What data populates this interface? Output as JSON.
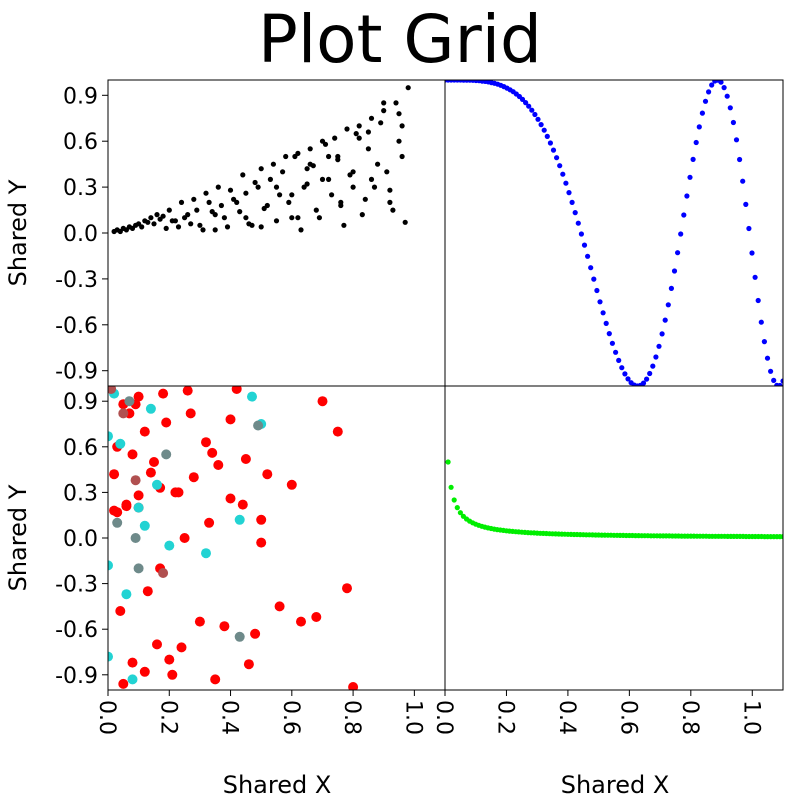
{
  "chart_data": {
    "type": "scatter",
    "title": "Plot Grid",
    "shared_xlabel": "Shared X",
    "shared_ylabel": "Shared Y",
    "xlim": [
      0.0,
      1.1
    ],
    "ylim": [
      -1.0,
      1.0
    ],
    "x_ticks": [
      "0.0",
      "0.2",
      "0.4",
      "0.6",
      "0.8",
      "1.0"
    ],
    "x_tick_values": [
      0.0,
      0.2,
      0.4,
      0.6,
      0.8,
      1.0
    ],
    "y_ticks": [
      "0.9",
      "0.6",
      "0.3",
      "0.0",
      "-0.3",
      "-0.6",
      "-0.9"
    ],
    "y_tick_values": [
      0.9,
      0.6,
      0.3,
      0.0,
      -0.3,
      -0.6,
      -0.9
    ],
    "grid": false,
    "panels": [
      {
        "position": "top-left",
        "series": [
          {
            "color": "#000000",
            "x": [
              0.02,
              0.03,
              0.04,
              0.05,
              0.06,
              0.07,
              0.08,
              0.09,
              0.1,
              0.11,
              0.12,
              0.13,
              0.14,
              0.15,
              0.16,
              0.17,
              0.18,
              0.2,
              0.22,
              0.24,
              0.26,
              0.28,
              0.3,
              0.32,
              0.34,
              0.36,
              0.38,
              0.4,
              0.42,
              0.44,
              0.46,
              0.48,
              0.5,
              0.52,
              0.54,
              0.56,
              0.58,
              0.6,
              0.62,
              0.64,
              0.66,
              0.68,
              0.7,
              0.72,
              0.74,
              0.76,
              0.78,
              0.8,
              0.82,
              0.84,
              0.86,
              0.88,
              0.9,
              0.92,
              0.94,
              0.96,
              0.98,
              0.97,
              0.95,
              0.93,
              0.91,
              0.89,
              0.87,
              0.85,
              0.83,
              0.81,
              0.79,
              0.77,
              0.75,
              0.73,
              0.71,
              0.69,
              0.67,
              0.65,
              0.63,
              0.61,
              0.59,
              0.57,
              0.55,
              0.53,
              0.51,
              0.49,
              0.47,
              0.45,
              0.43,
              0.41,
              0.39,
              0.37,
              0.35,
              0.33,
              0.31,
              0.29,
              0.27,
              0.25,
              0.23,
              0.21,
              0.19,
              0.35,
              0.45,
              0.55,
              0.65,
              0.75,
              0.85,
              0.95,
              0.5,
              0.6,
              0.7,
              0.8,
              0.9,
              0.62,
              0.72,
              0.82,
              0.92,
              0.66,
              0.76,
              0.86,
              0.96
            ],
            "y": [
              0.01,
              0.02,
              0.01,
              0.03,
              0.02,
              0.04,
              0.03,
              0.05,
              0.06,
              0.04,
              0.08,
              0.07,
              0.1,
              0.06,
              0.12,
              0.09,
              0.11,
              0.15,
              0.08,
              0.2,
              0.12,
              0.22,
              0.05,
              0.26,
              0.14,
              0.3,
              0.1,
              0.28,
              0.2,
              0.38,
              0.06,
              0.33,
              0.42,
              0.18,
              0.45,
              0.25,
              0.5,
              0.1,
              0.52,
              0.3,
              0.55,
              0.15,
              0.6,
              0.35,
              0.62,
              0.2,
              0.68,
              0.4,
              0.7,
              0.22,
              0.75,
              0.45,
              0.8,
              0.28,
              0.85,
              0.5,
              0.95,
              0.07,
              0.6,
              0.15,
              0.4,
              0.72,
              0.3,
              0.55,
              0.12,
              0.65,
              0.38,
              0.05,
              0.48,
              0.25,
              0.58,
              0.1,
              0.44,
              0.32,
              0.02,
              0.5,
              0.2,
              0.4,
              0.08,
              0.35,
              0.16,
              0.3,
              0.05,
              0.26,
              0.14,
              0.22,
              0.04,
              0.18,
              0.12,
              0.2,
              0.02,
              0.15,
              0.06,
              0.1,
              0.04,
              0.08,
              0.03,
              0.02,
              0.1,
              0.3,
              0.42,
              0.5,
              0.66,
              0.78,
              0.04,
              0.25,
              0.35,
              0.3,
              0.85,
              0.1,
              0.5,
              0.62,
              0.2,
              0.45,
              0.18,
              0.35,
              0.7
            ]
          }
        ]
      },
      {
        "position": "top-right",
        "series": [
          {
            "color": "#0000ff",
            "function": "cos(8*x^2)",
            "x_start": 0.0,
            "x_end": 1.1,
            "n_points": 110
          }
        ]
      },
      {
        "position": "bottom-left",
        "series": [
          {
            "color": "#ff0000",
            "x": [
              0.05,
              0.08,
              0.03,
              0.12,
              0.02,
              0.22,
              0.28,
              0.36,
              0.44,
              0.52,
              0.6,
              0.7,
              0.75,
              0.5,
              0.4,
              0.33,
              0.25,
              0.17,
              0.1,
              0.06,
              0.14,
              0.2,
              0.3,
              0.46,
              0.56,
              0.63,
              0.68,
              0.78,
              0.8,
              0.38,
              0.24,
              0.16,
              0.08,
              0.04,
              0.13,
              0.21,
              0.35,
              0.48,
              0.1,
              0.02,
              0.18,
              0.27,
              0.42,
              0.5,
              0.09,
              0.06,
              0.15,
              0.32,
              0.12,
              0.26,
              0.4,
              0.05,
              0.19,
              0.03,
              0.07,
              0.1,
              0.23,
              0.17,
              0.34,
              0.45
            ],
            "y": [
              0.88,
              0.55,
              0.6,
              0.7,
              0.18,
              0.3,
              0.4,
              0.48,
              0.22,
              0.42,
              0.35,
              0.9,
              0.7,
              0.12,
              0.26,
              0.1,
              0.0,
              0.33,
              0.28,
              0.21,
              0.43,
              -0.8,
              -0.55,
              -0.83,
              -0.45,
              -0.55,
              -0.52,
              -0.33,
              -0.98,
              -0.58,
              -0.72,
              -0.7,
              -0.82,
              -0.48,
              -0.35,
              -0.9,
              -0.93,
              -0.63,
              0.93,
              0.42,
              0.95,
              0.82,
              0.98,
              -0.03,
              0.88,
              0.22,
              0.5,
              0.63,
              -0.88,
              0.97,
              0.78,
              -0.96,
              0.76,
              0.17,
              0.82,
              0.2,
              0.3,
              -0.2,
              0.56,
              0.52
            ]
          },
          {
            "color": "#22d3d3",
            "x": [
              0.0,
              0.04,
              0.12,
              0.2,
              0.32,
              0.43,
              0.47,
              0.5,
              0.0,
              0.08,
              0.0,
              0.02,
              0.06,
              0.1,
              0.14,
              0.16
            ],
            "y": [
              0.67,
              0.62,
              0.08,
              -0.05,
              -0.1,
              0.12,
              0.93,
              0.75,
              -0.18,
              -0.93,
              -0.78,
              0.95,
              -0.37,
              0.2,
              0.85,
              0.35
            ]
          },
          {
            "color": "#6e8a8a",
            "x": [
              0.03,
              0.09,
              0.1,
              0.19,
              0.07,
              0.43,
              0.49
            ],
            "y": [
              0.1,
              0.0,
              -0.2,
              0.55,
              0.9,
              -0.65,
              0.74
            ]
          },
          {
            "color": "#b05050",
            "x": [
              0.05,
              0.09,
              0.18,
              0.01
            ],
            "y": [
              0.82,
              0.38,
              -0.23,
              0.98
            ]
          }
        ]
      },
      {
        "position": "bottom-right",
        "series": [
          {
            "color": "#00ee00",
            "function": "0.01/(x+0.01)",
            "x_start": 0.01,
            "x_end": 1.1,
            "n_points": 110
          }
        ]
      }
    ]
  }
}
